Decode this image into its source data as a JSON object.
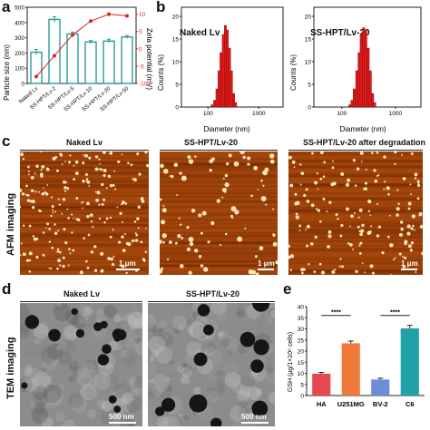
{
  "panels": {
    "a": "a",
    "b": "b",
    "c": "c",
    "d": "d",
    "e": "e"
  },
  "colors": {
    "teal": "#2a9b9b",
    "red_line": "#d9261c",
    "hist_red": "#e11b1b",
    "afm_dark": "#6b2200",
    "afm_mid": "#a3460b",
    "tem_bg": "#8c8c8c",
    "hla": "#e8484f",
    "u251": "#f07a3a",
    "bv2": "#6a8fd8",
    "c6": "#1fa3a8"
  },
  "panel_a": {
    "y_left_label": "Particle size (nm)",
    "y_right_label": "Zeta potential (mV)",
    "left_ticks": [
      "0",
      "100",
      "200",
      "300",
      "400",
      "500"
    ],
    "right_ticks": [
      "-10",
      "-5",
      "0",
      "5",
      "10"
    ]
  },
  "panel_b": {
    "ylabel": "Counts (%)",
    "xlabel": "Diameter (nm)",
    "left_title": "Naked Lv",
    "right_title": "SS-HPT/Lv-20",
    "y_ticks": [
      "0",
      "5",
      "10",
      "15",
      "20"
    ],
    "x_ticks": [
      "100",
      "1000"
    ]
  },
  "panel_c": {
    "side_label": "AFM imaging",
    "titles": [
      "Naked Lv",
      "SS-HPT/Lv-20",
      "SS-HPT/Lv-20 after degradation"
    ],
    "scale": "1 μm"
  },
  "panel_d": {
    "side_label": "TEM imaging",
    "titles": [
      "Naked Lv",
      "SS-HPT/Lv-20"
    ],
    "scale": "500 nm"
  },
  "panel_e": {
    "ylabel": "GSH (μg/1×10⁶ cells)",
    "sig": "****",
    "y_ticks": [
      "0",
      "5",
      "10",
      "15",
      "20",
      "25",
      "30",
      "35",
      "40"
    ]
  },
  "chart_data": [
    {
      "type": "bar",
      "categories": [
        "Naked Lv",
        "SS-HPT/Lv-2",
        "SS-HPT/Lv-5",
        "SS-HPT/Lv-10",
        "SS-HPT/Lv-20",
        "SS-HPT/Lv-50"
      ],
      "series": [
        {
          "values": [
            205,
            420,
            325,
            272,
            278,
            305
          ],
          "errors": [
            18,
            18,
            12,
            10,
            12,
            10
          ]
        },
        {
          "values": [
            -8,
            -2,
            4,
            8,
            10,
            9.5
          ]
        }
      ],
      "ylabel": "Particle size (nm)",
      "ylim": [
        0,
        500
      ],
      "y2label": "Zeta potential (mV)",
      "y2lim": [
        -10,
        12
      ]
    },
    {
      "type": "bar",
      "title": "Naked Lv",
      "xlabel": "Diameter (nm)",
      "ylabel": "Counts (%)",
      "x": [
        120,
        135,
        150,
        165,
        180,
        200,
        220,
        240,
        265,
        290,
        320,
        350
      ],
      "values": [
        0.5,
        1.5,
        4,
        8,
        12,
        16,
        18,
        17,
        13,
        8,
        3,
        1
      ],
      "ylim": [
        0,
        22
      ],
      "xscale": "log"
    },
    {
      "type": "bar",
      "title": "SS-HPT/Lv-20",
      "xlabel": "Diameter (nm)",
      "ylabel": "Counts (%)",
      "x": [
        140,
        155,
        170,
        190,
        210,
        230,
        255,
        280,
        310,
        340,
        375,
        410
      ],
      "values": [
        0.5,
        1.5,
        4,
        8,
        12,
        16,
        17.5,
        17,
        13,
        8,
        3,
        1
      ],
      "ylim": [
        0,
        22
      ],
      "xscale": "log"
    },
    {
      "type": "bar",
      "categories": [
        "HA",
        "U251MG",
        "BV-2",
        "C6"
      ],
      "values": [
        9.8,
        23.5,
        7.2,
        30.2
      ],
      "errors": [
        0.6,
        1.0,
        0.6,
        1.4
      ],
      "ylabel": "GSH (μg/1×10⁶ cells)",
      "ylim": [
        0,
        40
      ]
    }
  ]
}
